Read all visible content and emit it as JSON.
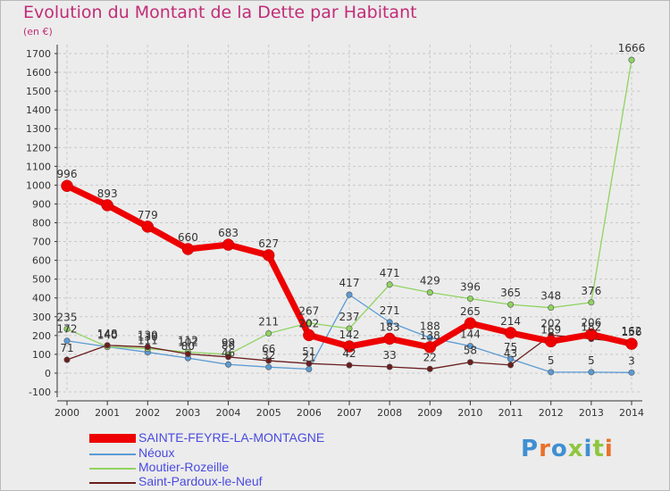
{
  "title": "Evolution du Montant de la Dette par Habitant",
  "unit_label": "(en €)",
  "logo_text": "Proxiti",
  "chart_data": {
    "type": "line",
    "title": "Evolution du Montant de la Dette par Habitant",
    "ylabel": "(en €)",
    "xlabel": "",
    "x": [
      2000,
      2001,
      2002,
      2003,
      2004,
      2005,
      2006,
      2007,
      2008,
      2009,
      2010,
      2011,
      2012,
      2013,
      2014
    ],
    "ylim": [
      -100,
      1700
    ],
    "yticks": [
      -100,
      0,
      100,
      200,
      300,
      400,
      500,
      600,
      700,
      800,
      900,
      1000,
      1100,
      1200,
      1300,
      1400,
      1500,
      1600,
      1700
    ],
    "grid": true,
    "legend_position": "bottom-left",
    "series": [
      {
        "name": "SAINTE-FEYRE-LA-MONTAGNE",
        "color": "#ee0000",
        "values": [
          996,
          893,
          779,
          660,
          683,
          627,
          202,
          142,
          183,
          138,
          265,
          214,
          169,
          206,
          156
        ],
        "labels": [
          "996",
          "893",
          "779",
          "660",
          "683",
          "627",
          "202",
          "142",
          "183",
          "138",
          "265",
          "214",
          "169",
          "206",
          "156"
        ]
      },
      {
        "name": "Néoux",
        "color": "#5b9bd5",
        "values": [
          172,
          140,
          111,
          80,
          46,
          32,
          21,
          417,
          271,
          188,
          144,
          75,
          5,
          5,
          3
        ],
        "labels": [
          "172",
          "140",
          "111",
          "80",
          "46",
          "32",
          "21",
          "417",
          "271",
          "188",
          "144",
          "75",
          "5",
          "5",
          "3"
        ]
      },
      {
        "name": "Moutier-Rozeille",
        "color": "#8fd460",
        "values": [
          235,
          140,
          130,
          112,
          99,
          211,
          267,
          237,
          471,
          429,
          396,
          365,
          348,
          376,
          1666
        ],
        "labels": [
          "235",
          "140",
          "130",
          "112",
          "99",
          "211",
          "267",
          "237",
          "471",
          "429",
          "396",
          "365",
          "348",
          "376",
          "1666"
        ]
      },
      {
        "name": "Saint-Pardoux-le-Neuf",
        "color": "#6b1e1e",
        "values": [
          71,
          148,
          139,
          102,
          86,
          66,
          51,
          42,
          33,
          22,
          58,
          43,
          202,
          182,
          162
        ],
        "labels": [
          "71",
          "148",
          "139",
          "102",
          "86",
          "66",
          "51",
          "42",
          "33",
          "22",
          "58",
          "43",
          "202",
          "182",
          "162"
        ]
      }
    ]
  }
}
